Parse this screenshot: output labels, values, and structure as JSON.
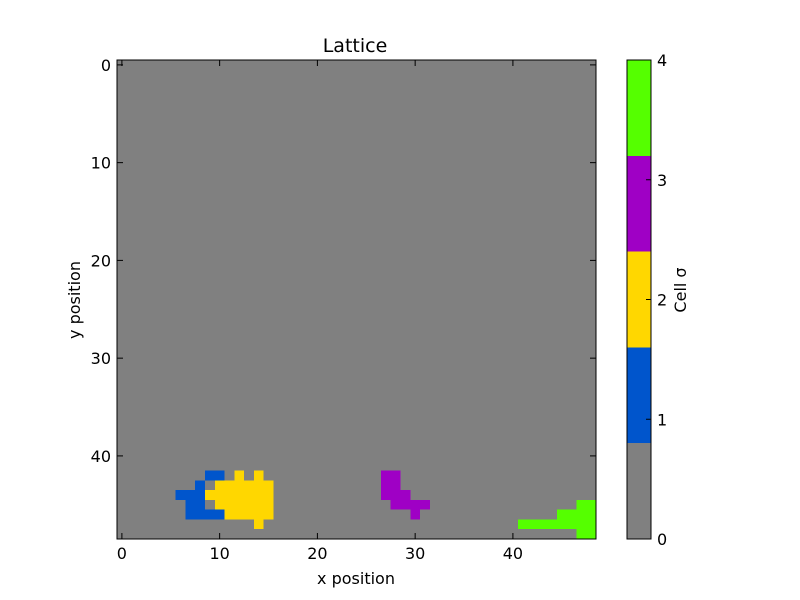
{
  "chart_data": {
    "type": "heatmap",
    "title": "Lattice",
    "xlabel": "x position",
    "ylabel": "y position",
    "xlim": [
      -0.5,
      48.5
    ],
    "ylim": [
      48.5,
      -0.5
    ],
    "x_ticks": [
      0,
      10,
      20,
      30,
      40
    ],
    "y_ticks": [
      0,
      10,
      20,
      30,
      40
    ],
    "grid": false,
    "background_value": 0,
    "colorbar": {
      "label": "Cell σ",
      "range": [
        0,
        4
      ],
      "ticks": [
        0,
        1,
        2,
        3,
        4
      ],
      "colors": [
        "#808080",
        "#0055cc",
        "#ffd700",
        "#9f00c5",
        "#55ff00"
      ]
    },
    "cells": [
      {
        "value": 1,
        "runs": [
          [
            42,
            9,
            10
          ],
          [
            43,
            8,
            8
          ],
          [
            44,
            6,
            8
          ],
          [
            45,
            7,
            8
          ],
          [
            46,
            7,
            10
          ]
        ]
      },
      {
        "value": 2,
        "runs": [
          [
            42,
            12,
            12
          ],
          [
            42,
            14,
            14
          ],
          [
            43,
            10,
            15
          ],
          [
            44,
            9,
            15
          ],
          [
            45,
            10,
            15
          ],
          [
            46,
            11,
            15
          ],
          [
            47,
            14,
            14
          ]
        ]
      },
      {
        "value": 3,
        "runs": [
          [
            42,
            27,
            28
          ],
          [
            43,
            27,
            28
          ],
          [
            44,
            27,
            29
          ],
          [
            45,
            28,
            31
          ],
          [
            46,
            30,
            30
          ]
        ]
      },
      {
        "value": 4,
        "runs": [
          [
            45,
            47,
            48
          ],
          [
            46,
            45,
            48
          ],
          [
            47,
            41,
            48
          ],
          [
            48,
            47,
            48
          ]
        ]
      }
    ]
  }
}
